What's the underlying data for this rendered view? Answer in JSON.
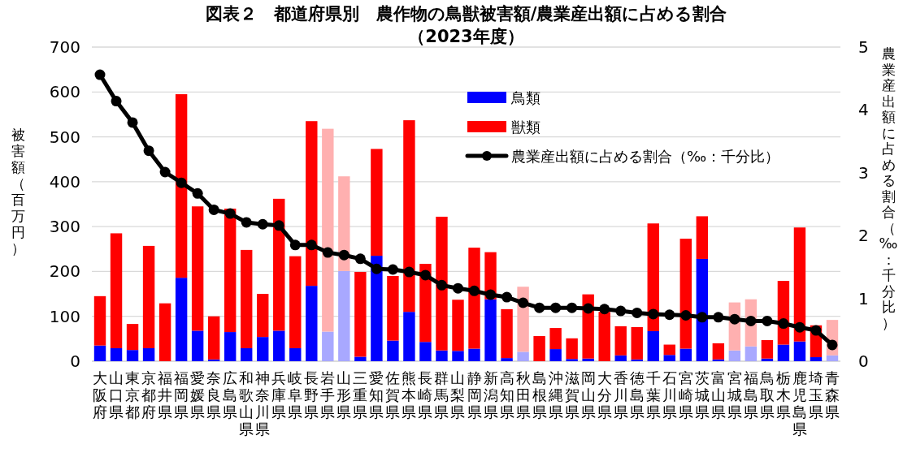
{
  "chart_data": {
    "type": "bar",
    "title": "図表２　都道府県別　農作物の鳥獣被害額/農業産出額に占める割合",
    "subtitle": "（2023年度）",
    "ylabel": "被害額（百万円）",
    "y2label": "農業産出額に占める割合（‰：千分比）",
    "categories": [
      "大阪府",
      "山口県",
      "東京都",
      "京都府",
      "福井県",
      "福岡県",
      "愛媛県",
      "奈良県",
      "広島県",
      "和歌山県",
      "神奈川県",
      "兵庫県",
      "岐阜県",
      "長野県",
      "岩手県",
      "山形県",
      "三重県",
      "愛知県",
      "佐賀県",
      "熊本県",
      "長崎県",
      "群馬県",
      "山梨県",
      "静岡県",
      "新潟県",
      "高知県",
      "秋田県",
      "島根県",
      "沖縄県",
      "滋賀県",
      "岡山県",
      "大分県",
      "香川県",
      "徳島県",
      "千葉県",
      "石川県",
      "宮崎県",
      "茨城県",
      "富山県",
      "宮城県",
      "福島県",
      "鳥取県",
      "栃木県",
      "鹿児島県",
      "埼玉県",
      "青森県"
    ],
    "stacked": true,
    "series": [
      {
        "name": "鳥類",
        "color": "#0000ff",
        "colors": [
          "#0000ff",
          "#0000ff",
          "#0000ff",
          "#0000ff",
          "#0000ff",
          "#0000ff",
          "#0000ff",
          "#0000ff",
          "#0000ff",
          "#0000ff",
          "#0000ff",
          "#0000ff",
          "#0000ff",
          "#0000ff",
          "#a8a8ff",
          "#a8a8ff",
          "#0000ff",
          "#0000ff",
          "#0000ff",
          "#0000ff",
          "#0000ff",
          "#0000ff",
          "#0000ff",
          "#0000ff",
          "#0000ff",
          "#0000ff",
          "#a8a8ff",
          "#0000ff",
          "#0000ff",
          "#0000ff",
          "#0000ff",
          "#0000ff",
          "#0000ff",
          "#0000ff",
          "#0000ff",
          "#0000ff",
          "#0000ff",
          "#0000ff",
          "#0000ff",
          "#a8a8ff",
          "#a8a8ff",
          "#0000ff",
          "#0000ff",
          "#0000ff",
          "#0000ff",
          "#a8a8ff"
        ],
        "values": [
          35,
          29,
          25,
          29,
          0,
          186,
          68,
          4,
          65,
          29,
          54,
          68,
          29,
          168,
          66,
          201,
          10,
          235,
          46,
          110,
          43,
          24,
          23,
          28,
          138,
          7,
          21,
          0,
          27,
          5,
          6,
          0,
          13,
          4,
          67,
          14,
          28,
          228,
          4,
          24,
          33,
          6,
          37,
          44,
          9,
          13
        ]
      },
      {
        "name": "獣類",
        "color": "#ff0000",
        "colors": [
          "#ff0000",
          "#ff0000",
          "#ff0000",
          "#ff0000",
          "#ff0000",
          "#ff0000",
          "#ff0000",
          "#ff0000",
          "#ff0000",
          "#ff0000",
          "#ff0000",
          "#ff0000",
          "#ff0000",
          "#ff0000",
          "#ffb0b0",
          "#ffb0b0",
          "#ff0000",
          "#ff0000",
          "#ff0000",
          "#ff0000",
          "#ff0000",
          "#ff0000",
          "#ff0000",
          "#ff0000",
          "#ff0000",
          "#ff0000",
          "#ffb0b0",
          "#ff0000",
          "#ff0000",
          "#ff0000",
          "#ff0000",
          "#ff0000",
          "#ff0000",
          "#ff0000",
          "#ff0000",
          "#ff0000",
          "#ff0000",
          "#ff0000",
          "#ff0000",
          "#ffb0b0",
          "#ffb0b0",
          "#ff0000",
          "#ff0000",
          "#ff0000",
          "#ff0000",
          "#ffb0b0"
        ],
        "values": [
          110,
          256,
          58,
          228,
          129,
          409,
          277,
          96,
          275,
          219,
          96,
          294,
          205,
          367,
          452,
          211,
          189,
          238,
          144,
          427,
          174,
          298,
          114,
          225,
          105,
          109,
          145,
          56,
          47,
          46,
          143,
          110,
          65,
          72,
          240,
          23,
          245,
          95,
          36,
          107,
          105,
          41,
          142,
          254,
          71,
          79
        ]
      },
      {
        "name": "農業産出額に占める割合（‰：千分比）",
        "type": "line",
        "axis": "y2",
        "color": "#000000",
        "values": [
          4.56,
          4.14,
          3.8,
          3.35,
          3.01,
          2.84,
          2.67,
          2.41,
          2.35,
          2.21,
          2.18,
          2.16,
          1.85,
          1.85,
          1.73,
          1.69,
          1.63,
          1.47,
          1.46,
          1.42,
          1.37,
          1.21,
          1.16,
          1.12,
          1.06,
          1.02,
          0.93,
          0.85,
          0.85,
          0.85,
          0.84,
          0.83,
          0.8,
          0.77,
          0.75,
          0.74,
          0.73,
          0.7,
          0.7,
          0.67,
          0.64,
          0.64,
          0.6,
          0.54,
          0.49,
          0.26
        ]
      }
    ],
    "ylim": [
      0,
      700
    ],
    "yticks": [
      0,
      100,
      200,
      300,
      400,
      500,
      600,
      700
    ],
    "y2lim": [
      0,
      5
    ],
    "y2ticks": [
      0,
      1,
      2,
      3,
      4,
      5
    ],
    "grid": "y",
    "legend": "top",
    "marker": "circle"
  }
}
